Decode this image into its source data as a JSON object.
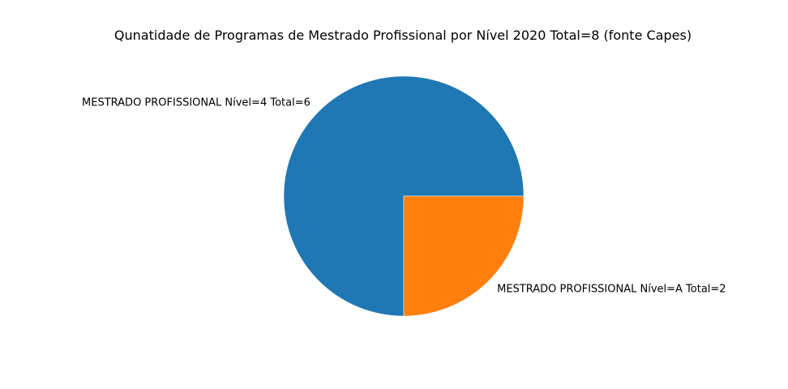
{
  "chart_data": {
    "type": "pie",
    "title": "Qunatidade de Programas de Mestrado Profissional por Nível  2020 Total=8 (fonte Capes)",
    "slices": [
      {
        "label": "MESTRADO PROFISSIONAL  Nível=4 Total=6",
        "value": 6,
        "color": "#1f77b4"
      },
      {
        "label": "MESTRADO PROFISSIONAL  Nível=A Total=2",
        "value": 2,
        "color": "#ff7f0e"
      }
    ],
    "start_angle_deg": 0,
    "direction": "counterclockwise",
    "legend": "none"
  }
}
